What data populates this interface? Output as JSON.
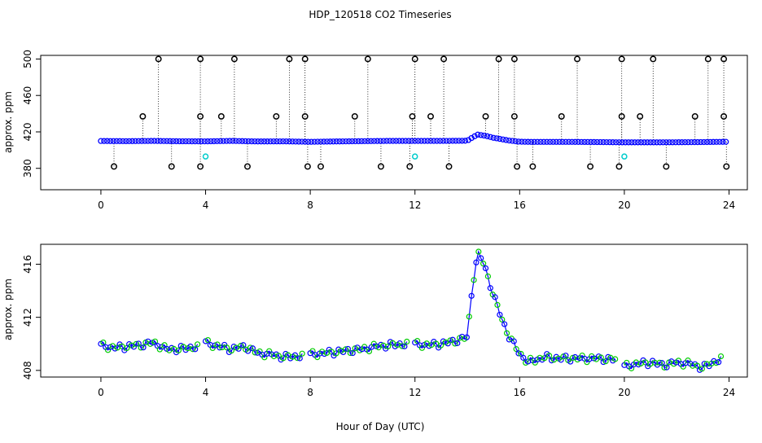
{
  "title": "HDP_120518  CO2 Timeseries",
  "xlabel": "Hour of Day (UTC)",
  "chart_data": [
    {
      "type": "scatter",
      "title": "",
      "ylabel": "approx. ppm",
      "xlim": [
        -2.3,
        24.7
      ],
      "ylim": [
        356.5,
        504
      ],
      "x_ticks": [
        "0",
        "4",
        "8",
        "12",
        "16",
        "20",
        "24"
      ],
      "x_tick_values": [
        0,
        4,
        8,
        12,
        16,
        20,
        24
      ],
      "y_ticks": [
        "380",
        "420",
        "460",
        "500"
      ],
      "y_tick_values": [
        380,
        420,
        460,
        500
      ],
      "baseline": {
        "x": [
          0,
          1,
          2,
          3,
          4,
          5,
          6,
          7,
          8,
          9,
          10,
          11,
          12,
          13,
          13.5,
          14,
          14.2,
          14.4,
          14.6,
          14.8,
          15,
          15.3,
          15.6,
          16,
          16.5,
          17,
          18,
          19,
          20,
          21,
          22,
          23,
          23.8
        ],
        "y": [
          410,
          409.8,
          410.1,
          409.7,
          409.6,
          410.1,
          409.5,
          409.6,
          409.1,
          409.5,
          409.8,
          410.1,
          410.1,
          410.1,
          410.2,
          410.3,
          414,
          417,
          416.2,
          415,
          413.5,
          412,
          410.5,
          409.2,
          409,
          409,
          409,
          408.8,
          408.5,
          408.5,
          408.6,
          408.8,
          409.1
        ],
        "color": "#0000ff"
      },
      "spikes_high": {
        "x": [
          2.2,
          3.8,
          5.1,
          7.2,
          7.8,
          10.2,
          12.0,
          13.1,
          15.2,
          15.8,
          18.2,
          19.9,
          21.1,
          23.2,
          23.8
        ],
        "y": [
          500,
          500,
          500,
          500,
          500,
          500,
          500,
          500,
          500,
          500,
          500,
          500,
          500,
          500,
          500
        ]
      },
      "spikes_mid": {
        "x": [
          1.6,
          3.8,
          4.6,
          6.7,
          7.8,
          9.7,
          11.9,
          12.6,
          14.7,
          15.8,
          17.6,
          19.9,
          20.6,
          22.7,
          23.8
        ],
        "y": [
          437,
          437,
          437,
          437,
          437,
          437,
          437,
          437,
          437,
          437,
          437,
          437,
          437,
          437,
          437
        ]
      },
      "spikes_low": {
        "x": [
          0.5,
          2.7,
          3.8,
          5.6,
          7.9,
          8.4,
          10.7,
          11.8,
          13.3,
          15.9,
          16.5,
          18.7,
          19.8,
          21.6,
          23.9
        ],
        "y": [
          382,
          382,
          382,
          382,
          382,
          382,
          382,
          382,
          382,
          382,
          382,
          382,
          382,
          382,
          382
        ]
      },
      "cyan_points": {
        "x": [
          4.0,
          12.0,
          20.0
        ],
        "y": [
          393,
          393,
          393
        ],
        "color": "#00cccc"
      }
    },
    {
      "type": "scatter",
      "title": "",
      "ylabel": "approx. ppm",
      "xlim": [
        -2.3,
        24.7
      ],
      "ylim": [
        407.5,
        417.5
      ],
      "x_ticks": [
        "0",
        "4",
        "8",
        "12",
        "16",
        "20",
        "24"
      ],
      "x_tick_values": [
        0,
        4,
        8,
        12,
        16,
        20,
        24
      ],
      "y_ticks": [
        "408",
        "412",
        "416"
      ],
      "y_tick_values": [
        408,
        412,
        416
      ],
      "segments": [
        {
          "x": [
            0,
            0.5,
            1.0,
            1.5,
            2.0,
            2.5,
            3.0,
            3.7
          ],
          "y": [
            409.9,
            409.7,
            409.8,
            409.9,
            410.1,
            409.6,
            409.6,
            409.8
          ]
        },
        {
          "x": [
            4.0,
            4.5,
            5.0,
            5.5,
            6.0,
            6.5,
            7.0,
            7.7
          ],
          "y": [
            410.1,
            409.8,
            409.6,
            409.8,
            409.3,
            409.2,
            409.0,
            409.1
          ]
        },
        {
          "x": [
            8.0,
            8.5,
            9.0,
            9.5,
            10.0,
            10.5,
            11.0,
            11.7
          ],
          "y": [
            409.2,
            409.3,
            409.4,
            409.5,
            409.6,
            409.8,
            409.9,
            410.0
          ]
        },
        {
          "x": [
            12.0,
            12.5,
            13.0,
            13.5,
            14.0,
            14.2,
            14.4,
            14.6,
            14.8,
            15.0,
            15.3,
            15.6,
            16.0,
            16.3,
            16.6,
            17.0,
            17.5,
            18.0,
            18.5,
            19.0,
            19.7
          ],
          "y": [
            410.0,
            409.9,
            410.0,
            410.2,
            410.5,
            414.5,
            416.8,
            416.2,
            415.0,
            413.6,
            412.0,
            410.5,
            409.3,
            408.6,
            408.8,
            409.0,
            408.9,
            408.9,
            408.9,
            408.9,
            408.8
          ]
        },
        {
          "x": [
            20.0,
            20.5,
            21.0,
            21.5,
            22.0,
            22.5,
            23.0,
            23.7
          ],
          "y": [
            408.3,
            408.5,
            408.6,
            408.4,
            408.6,
            408.5,
            408.2,
            408.9
          ]
        }
      ],
      "line_color": "#0000ff",
      "point_colors": [
        "#0000ff",
        "#00cc00"
      ]
    }
  ]
}
